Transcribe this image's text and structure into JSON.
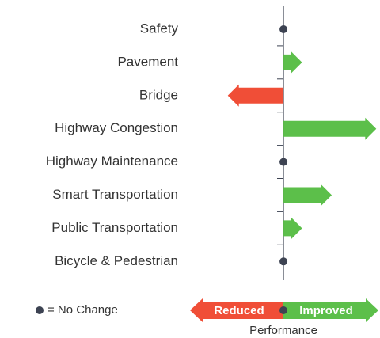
{
  "chart_data": {
    "type": "diverging_arrow",
    "categories": [
      "Safety",
      "Pavement",
      "Bridge",
      "Highway Congestion",
      "Highway Maintenance",
      "Smart Transportation",
      "Public Transportation",
      "Bicycle & Pedestrian"
    ],
    "values": [
      0,
      1,
      -3,
      5,
      0,
      2.6,
      1,
      0
    ],
    "xlim": [
      -3.5,
      5.2
    ],
    "colors": {
      "improved": "#5cbf4a",
      "reduced": "#f04e37",
      "no_change": "#3d4352"
    },
    "legend": {
      "no_change": "= No Change",
      "reduced": "Reduced",
      "improved": "Improved"
    },
    "xlabel": "Performance"
  }
}
